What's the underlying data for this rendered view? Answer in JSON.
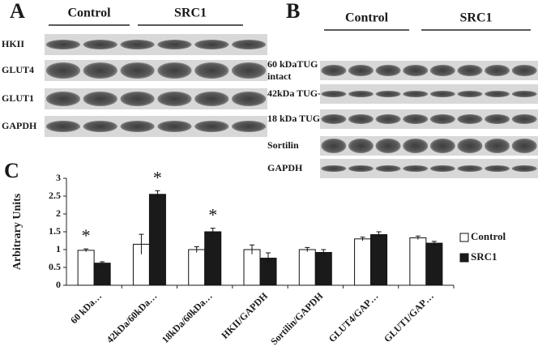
{
  "panel_a": {
    "label": "A",
    "groups": [
      "Control",
      "SRC1"
    ],
    "rows": [
      "HKII",
      "GLUT4",
      "GLUT1",
      "GAPDH"
    ]
  },
  "panel_b": {
    "label": "B",
    "groups": [
      "Control",
      "SRC1"
    ],
    "rows": [
      "60 kDaTUG\nintact",
      "42kDa TUG-C",
      "18 kDa TUG-C",
      "Sortilin",
      "GAPDH"
    ]
  },
  "chart_data": {
    "type": "bar",
    "panel_label": "C",
    "y_label": "Arbitrary Units",
    "categories": [
      "60 kDa…",
      "42kDa/60kDa…",
      "18kDa/60kDa…",
      "HKII/GAPDH",
      "Sortilin/GAPDH",
      "GLUT4/GAP…",
      "GLUT1/GAP…"
    ],
    "series": [
      {
        "name": "Control",
        "color": "#ffffff",
        "values": [
          0.98,
          1.15,
          1.0,
          1.0,
          1.0,
          1.3,
          1.33
        ],
        "errors": [
          0.04,
          0.28,
          0.08,
          0.13,
          0.06,
          0.05,
          0.05
        ]
      },
      {
        "name": "SRC1",
        "color": "#1a1a1a",
        "values": [
          0.62,
          2.55,
          1.5,
          0.76,
          0.92,
          1.42,
          1.18
        ],
        "errors": [
          0.04,
          0.1,
          0.1,
          0.15,
          0.08,
          0.08,
          0.05
        ]
      }
    ],
    "significance": [
      "*",
      "*",
      "*",
      null,
      null,
      null,
      null
    ],
    "ylim": [
      0,
      3
    ],
    "yticks": [
      0,
      0.5,
      1,
      1.5,
      2,
      2.5,
      3
    ]
  }
}
